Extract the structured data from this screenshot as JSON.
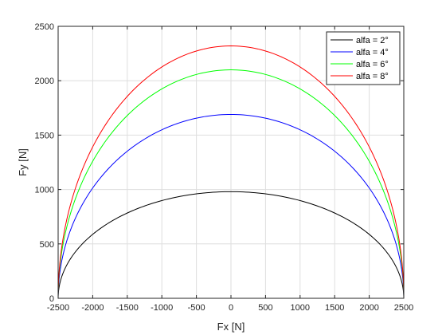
{
  "chart_data": {
    "type": "line",
    "title": "",
    "xlabel": "Fx [N]",
    "ylabel": "Fy [N]",
    "xlim": [
      -2500,
      2500
    ],
    "ylim": [
      0,
      2500
    ],
    "xticks": [
      -2500,
      -2000,
      -1500,
      -1000,
      -500,
      0,
      500,
      1000,
      1500,
      2000,
      2500
    ],
    "yticks": [
      0,
      500,
      1000,
      1500,
      2000,
      2500
    ],
    "grid": true,
    "legend_position": "top-right",
    "x": [
      -2500,
      -2450,
      -2300,
      -2000,
      -1500,
      -1000,
      -500,
      0,
      500,
      1000,
      1500,
      2000,
      2300,
      2450,
      2500
    ],
    "series": [
      {
        "name": "alfa = 2°",
        "color": "#000000",
        "values": [
          0,
          196,
          385,
          588,
          784,
          898,
          960,
          980,
          960,
          898,
          784,
          588,
          385,
          196,
          0
        ]
      },
      {
        "name": "alfa = 4°",
        "color": "#0000ff",
        "values": [
          0,
          336,
          662,
          1014,
          1352,
          1549,
          1655,
          1690,
          1655,
          1549,
          1352,
          1014,
          662,
          336,
          0
        ]
      },
      {
        "name": "alfa = 6°",
        "color": "#00ff00",
        "values": [
          0,
          418,
          823,
          1260,
          1680,
          1925,
          2058,
          2100,
          2058,
          1925,
          1680,
          1260,
          823,
          418,
          0
        ]
      },
      {
        "name": "alfa = 8°",
        "color": "#ff0000",
        "values": [
          0,
          462,
          909,
          1392,
          1856,
          2127,
          2273,
          2320,
          2273,
          2127,
          1856,
          1392,
          909,
          462,
          0
        ]
      }
    ]
  }
}
